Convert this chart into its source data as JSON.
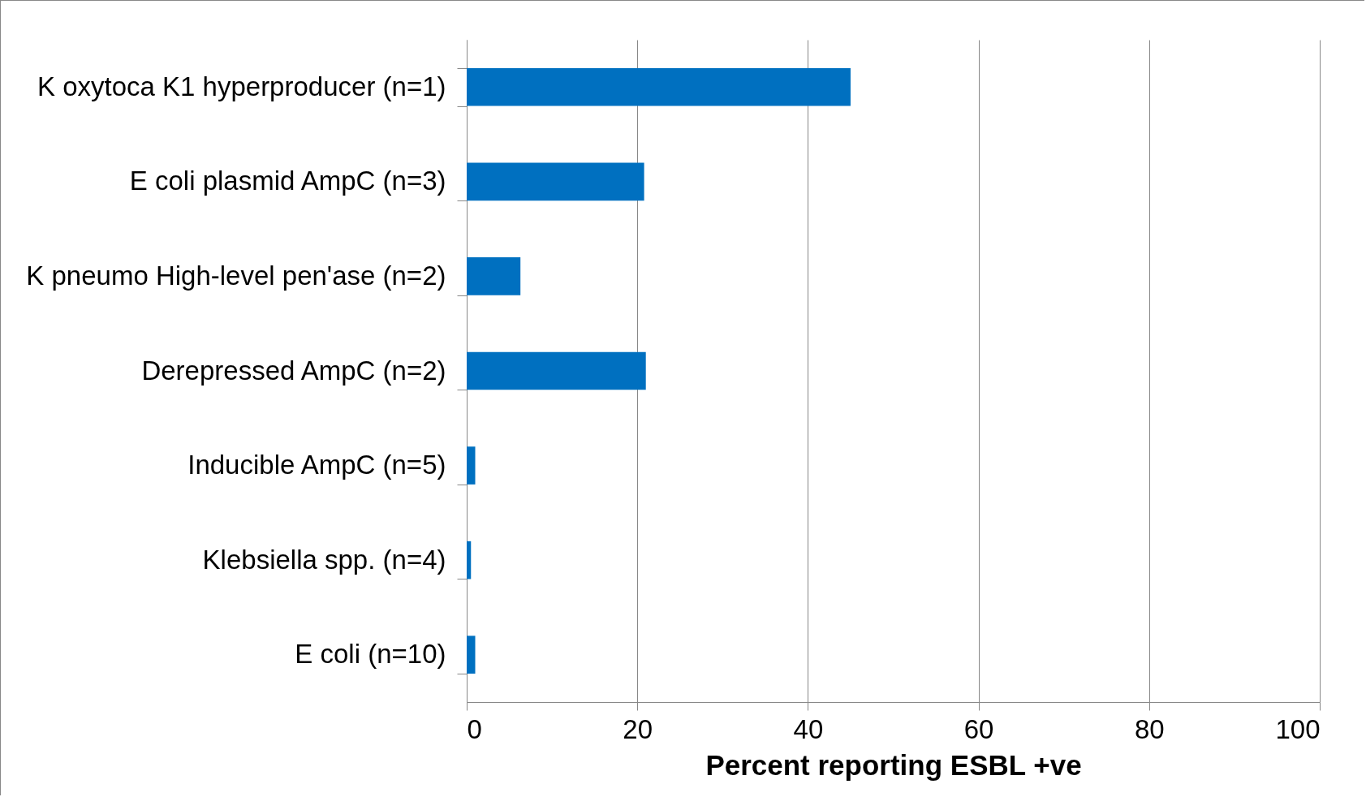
{
  "chart_data": {
    "type": "bar",
    "orientation": "horizontal",
    "xlabel": "Percent reporting ESBL +ve",
    "categories": [
      "K oxytoca K1 hyperproducer (n=1)",
      "E coli plasmid AmpC (n=3)",
      "K pneumo High-level pen'ase (n=2)",
      "Derepressed AmpC (n=2)",
      "Inducible AmpC (n=5)",
      "Klebsiella spp. (n=4)",
      "E coli (n=10)"
    ],
    "values": [
      45,
      20.8,
      6.3,
      21,
      1,
      0.5,
      1
    ],
    "color": "#0070c0",
    "xlim": [
      0,
      100
    ],
    "xticks": [
      0,
      20,
      40,
      60,
      80,
      100
    ],
    "grid": "x"
  }
}
